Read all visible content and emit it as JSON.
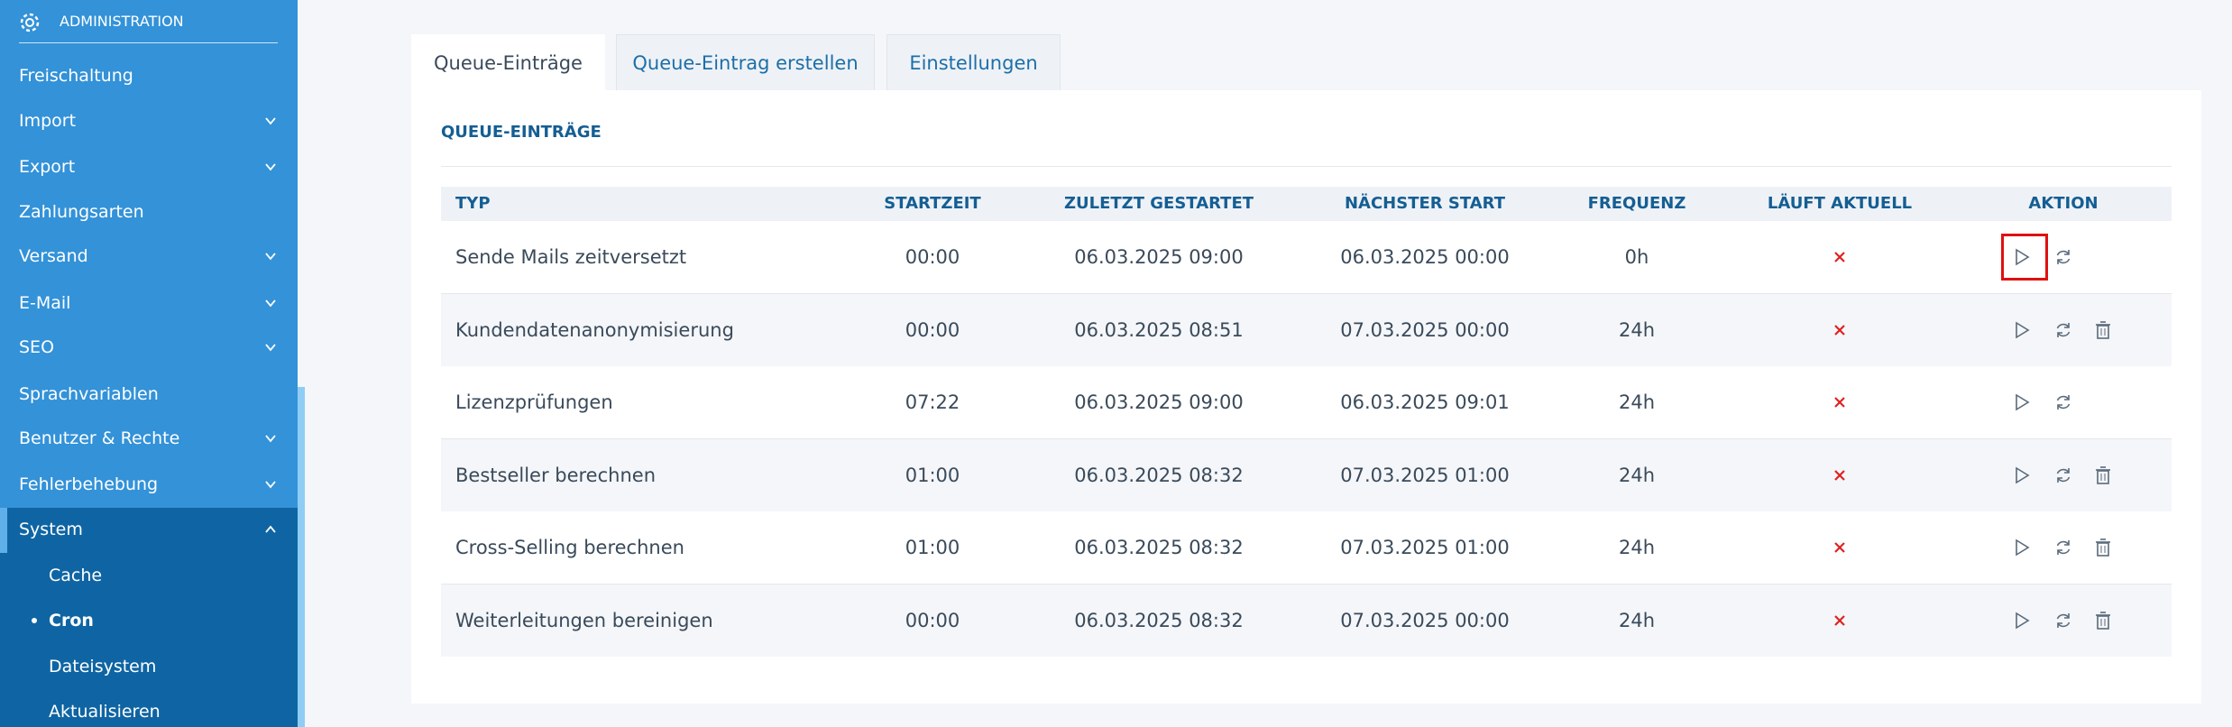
{
  "sidebar": {
    "header": "ADMINISTRATION",
    "items": [
      "Freischaltung",
      "Import",
      "Export",
      "Zahlungsarten",
      "Versand",
      "E-Mail",
      "SEO",
      "Sprachvariablen",
      "Benutzer & Rechte",
      "Fehlerbehebung",
      "System"
    ],
    "subitems": [
      "Cache",
      "Cron",
      "Dateisystem",
      "Aktualisieren"
    ]
  },
  "tabs": [
    "Queue-Einträge",
    "Queue-Eintrag erstellen",
    "Einstellungen"
  ],
  "panel": {
    "title": "QUEUE-EINTRÄGE"
  },
  "table": {
    "headers": [
      "TYP",
      "STARTZEIT",
      "ZULETZT GESTARTET",
      "NÄCHSTER START",
      "FREQUENZ",
      "LÄUFT AKTUELL",
      "AKTION"
    ],
    "rows": [
      [
        "Sende Mails zeitversetzt",
        "00:00",
        "06.03.2025 09:00",
        "06.03.2025 00:00",
        "0h"
      ],
      [
        "Kundendatenanonymisierung",
        "00:00",
        "06.03.2025 08:51",
        "07.03.2025 00:00",
        "24h"
      ],
      [
        "Lizenzprüfungen",
        "07:22",
        "06.03.2025 09:00",
        "06.03.2025 09:01",
        "24h"
      ],
      [
        "Bestseller berechnen",
        "01:00",
        "06.03.2025 08:32",
        "07.03.2025 01:00",
        "24h"
      ],
      [
        "Cross-Selling berechnen",
        "01:00",
        "06.03.2025 08:32",
        "07.03.2025 01:00",
        "24h"
      ],
      [
        "Weiterleitungen bereinigen",
        "00:00",
        "06.03.2025 08:32",
        "07.03.2025 00:00",
        "24h"
      ]
    ]
  }
}
